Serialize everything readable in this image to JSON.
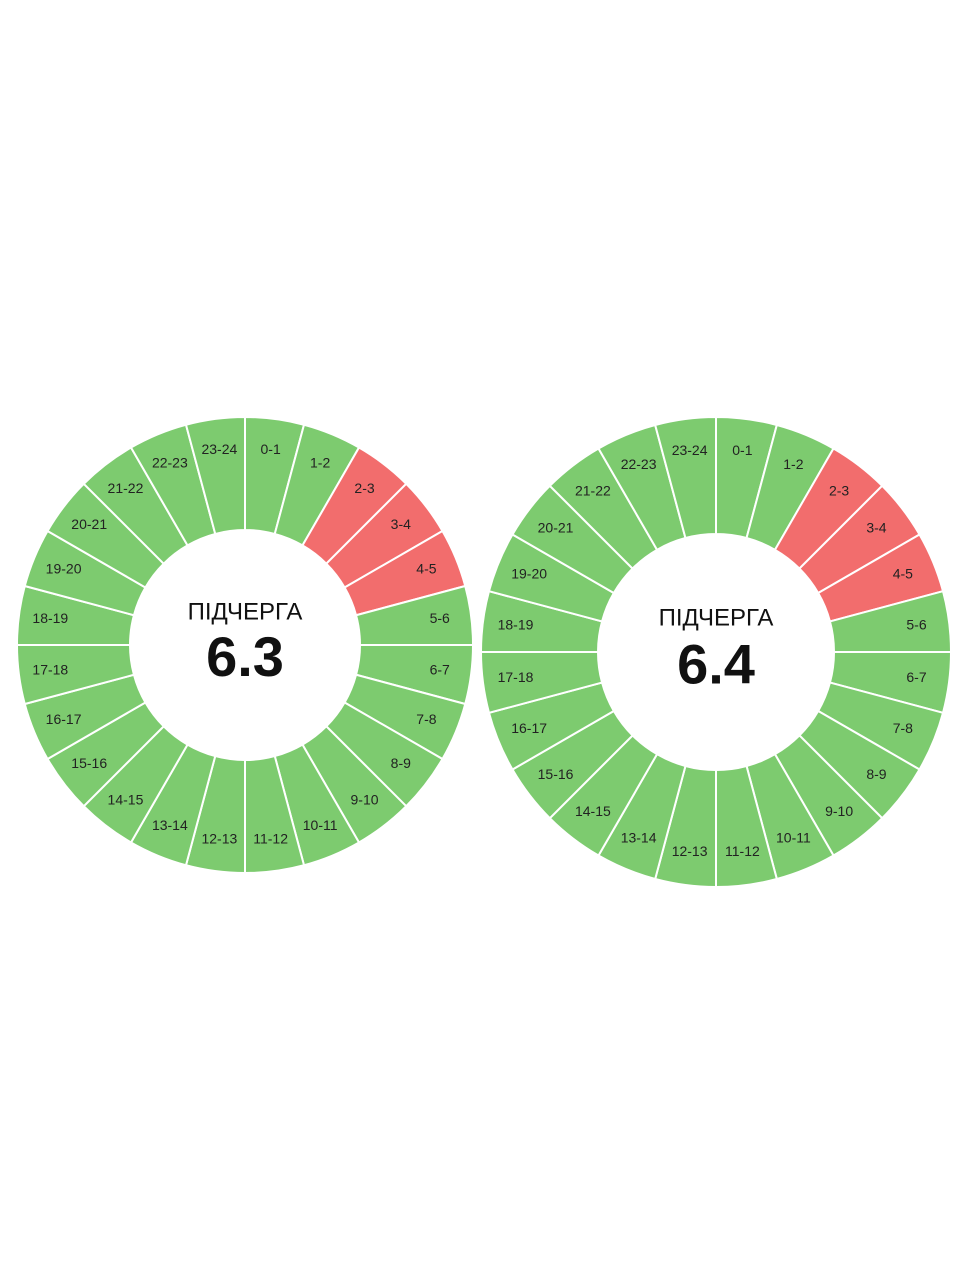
{
  "dials": [
    {
      "title": "ПІДЧЕРГА",
      "number": "6.3",
      "segments": [
        {
          "label": "0-1",
          "color": "#7dcb6f"
        },
        {
          "label": "1-2",
          "color": "#7dcb6f"
        },
        {
          "label": "2-3",
          "color": "#f26d6d"
        },
        {
          "label": "3-4",
          "color": "#f26d6d"
        },
        {
          "label": "4-5",
          "color": "#f26d6d"
        },
        {
          "label": "5-6",
          "color": "#7dcb6f"
        },
        {
          "label": "6-7",
          "color": "#7dcb6f"
        },
        {
          "label": "7-8",
          "color": "#7dcb6f"
        },
        {
          "label": "8-9",
          "color": "#7dcb6f"
        },
        {
          "label": "9-10",
          "color": "#7dcb6f"
        },
        {
          "label": "10-11",
          "color": "#7dcb6f"
        },
        {
          "label": "11-12",
          "color": "#7dcb6f"
        },
        {
          "label": "12-13",
          "color": "#7dcb6f"
        },
        {
          "label": "13-14",
          "color": "#7dcb6f"
        },
        {
          "label": "14-15",
          "color": "#7dcb6f"
        },
        {
          "label": "15-16",
          "color": "#7dcb6f"
        },
        {
          "label": "16-17",
          "color": "#7dcb6f"
        },
        {
          "label": "17-18",
          "color": "#7dcb6f"
        },
        {
          "label": "18-19",
          "color": "#7dcb6f"
        },
        {
          "label": "19-20",
          "color": "#7dcb6f"
        },
        {
          "label": "20-21",
          "color": "#7dcb6f"
        },
        {
          "label": "21-22",
          "color": "#7dcb6f"
        },
        {
          "label": "22-23",
          "color": "#7dcb6f"
        },
        {
          "label": "23-24",
          "color": "#7dcb6f"
        }
      ]
    },
    {
      "title": "ПІДЧЕРГА",
      "number": "6.4",
      "segments": [
        {
          "label": "0-1",
          "color": "#7dcb6f"
        },
        {
          "label": "1-2",
          "color": "#7dcb6f"
        },
        {
          "label": "2-3",
          "color": "#f26d6d"
        },
        {
          "label": "3-4",
          "color": "#f26d6d"
        },
        {
          "label": "4-5",
          "color": "#f26d6d"
        },
        {
          "label": "5-6",
          "color": "#7dcb6f"
        },
        {
          "label": "6-7",
          "color": "#7dcb6f"
        },
        {
          "label": "7-8",
          "color": "#7dcb6f"
        },
        {
          "label": "8-9",
          "color": "#7dcb6f"
        },
        {
          "label": "9-10",
          "color": "#7dcb6f"
        },
        {
          "label": "10-11",
          "color": "#7dcb6f"
        },
        {
          "label": "11-12",
          "color": "#7dcb6f"
        },
        {
          "label": "12-13",
          "color": "#7dcb6f"
        },
        {
          "label": "13-14",
          "color": "#7dcb6f"
        },
        {
          "label": "14-15",
          "color": "#7dcb6f"
        },
        {
          "label": "15-16",
          "color": "#7dcb6f"
        },
        {
          "label": "16-17",
          "color": "#7dcb6f"
        },
        {
          "label": "17-18",
          "color": "#7dcb6f"
        },
        {
          "label": "18-19",
          "color": "#7dcb6f"
        },
        {
          "label": "19-20",
          "color": "#7dcb6f"
        },
        {
          "label": "20-21",
          "color": "#7dcb6f"
        },
        {
          "label": "21-22",
          "color": "#7dcb6f"
        },
        {
          "label": "22-23",
          "color": "#7dcb6f"
        },
        {
          "label": "23-24",
          "color": "#7dcb6f"
        }
      ]
    }
  ]
}
